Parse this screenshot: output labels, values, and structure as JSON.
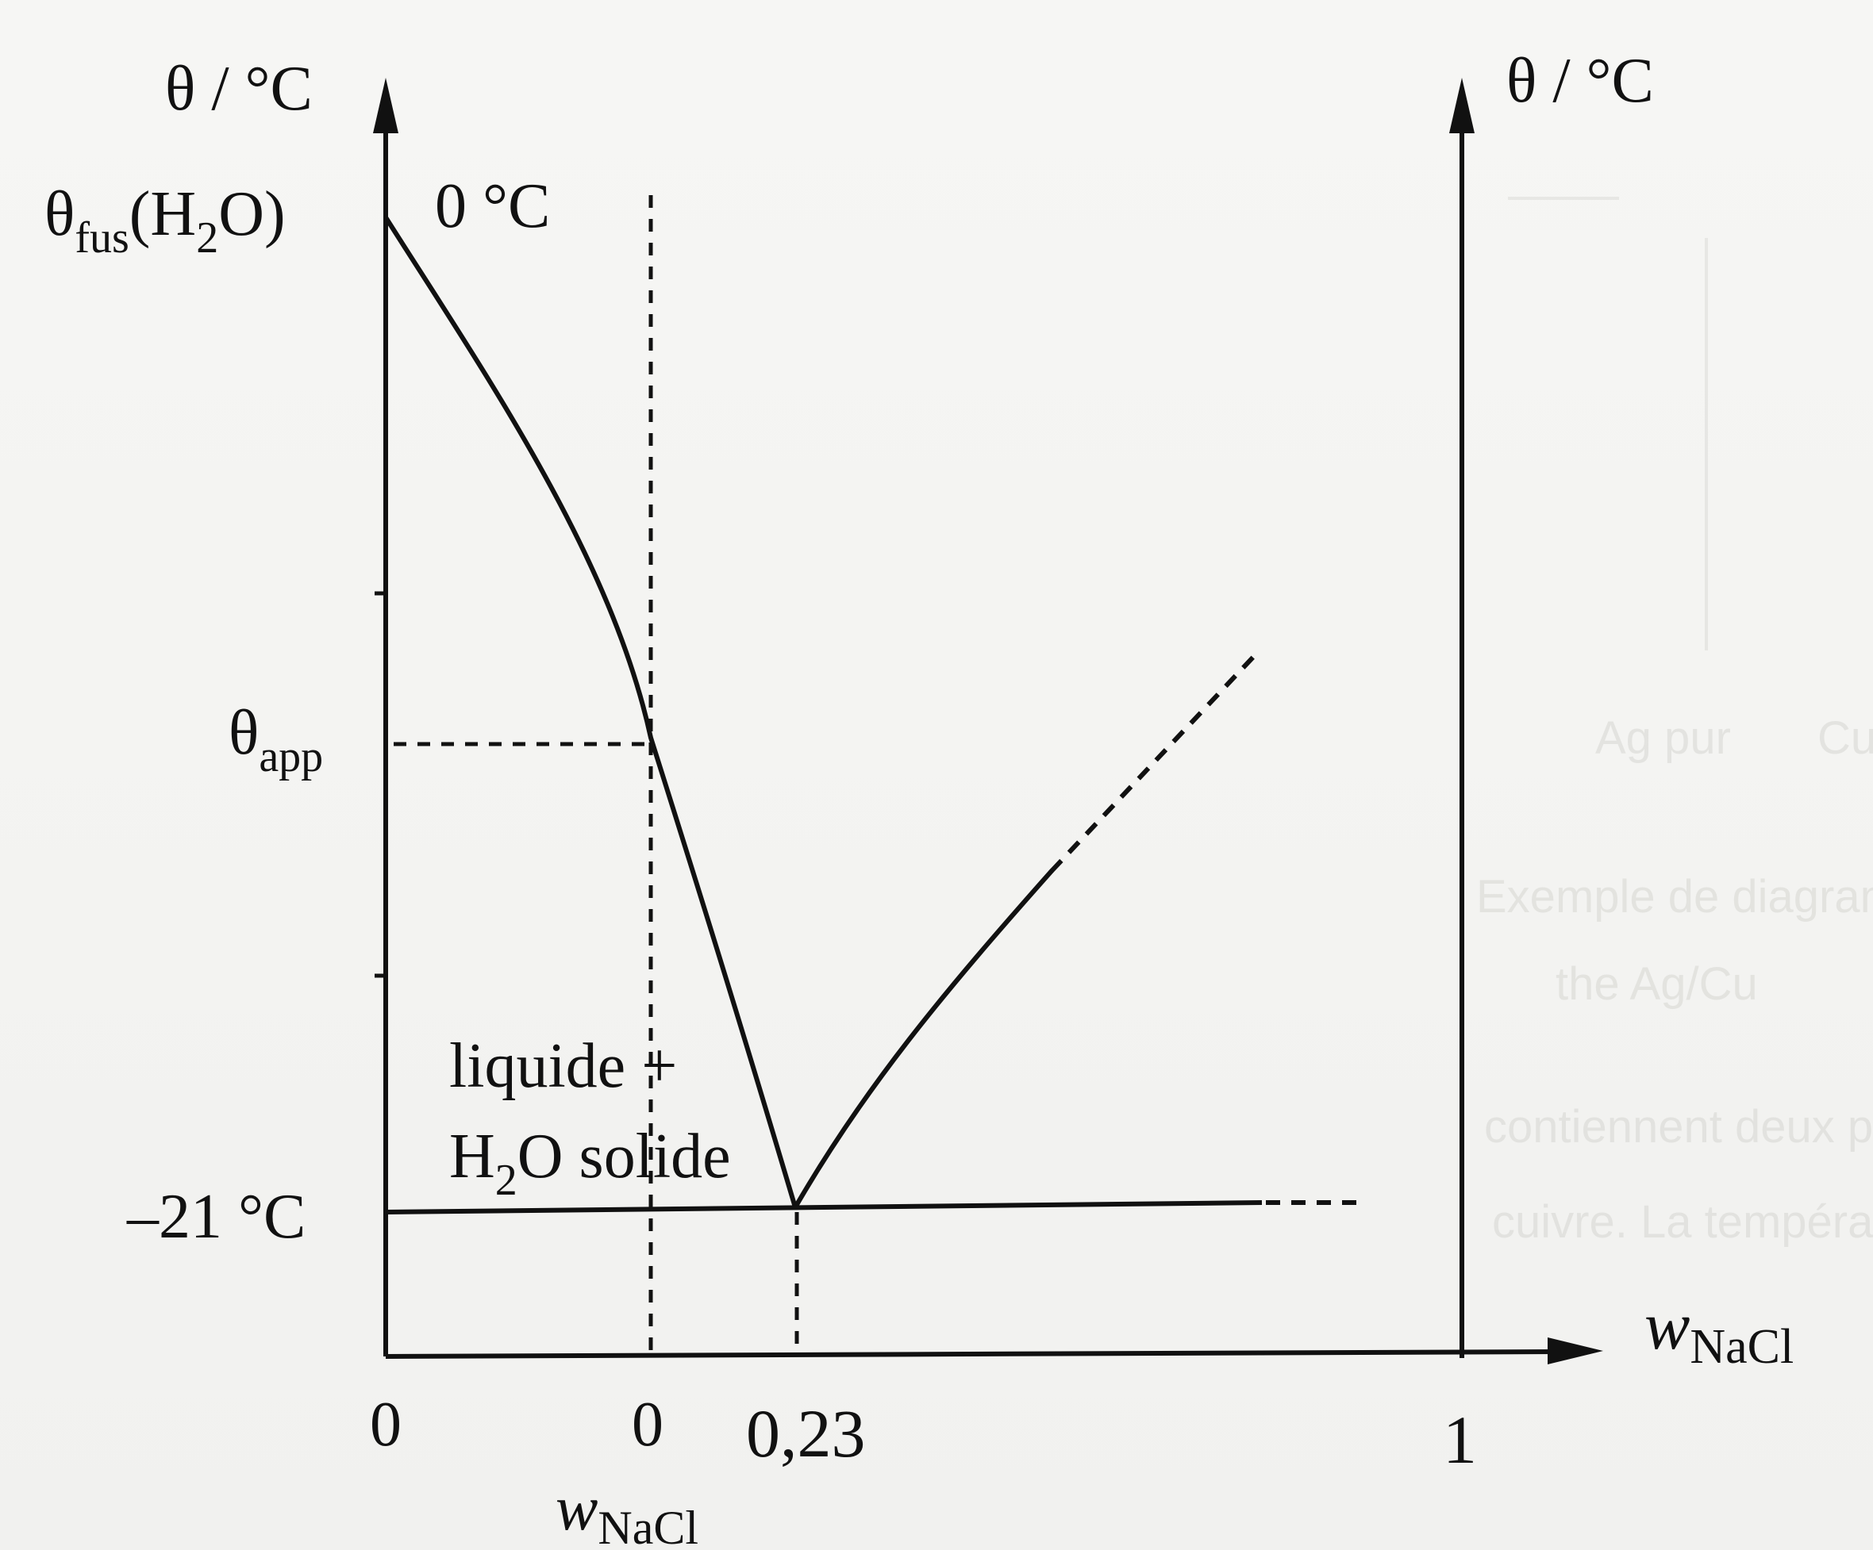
{
  "diagram": {
    "left_axis": {
      "label": "θ / °C"
    },
    "right_axis": {
      "label": "θ / °C"
    },
    "x_axis": {
      "label": "w",
      "label_sub": "NaCl"
    },
    "y_labels": {
      "theta_fus": {
        "main": "θ",
        "sub": "fus",
        "rest": "(H",
        "sub2": "2",
        "tail": "O)"
      },
      "zero_c": "0 °C",
      "theta_app": {
        "main": "θ",
        "sub": "app"
      },
      "minus21": "–21 °C"
    },
    "x_ticks": {
      "origin": "0",
      "w0": "0",
      "w0_caption": {
        "main": "w",
        "sub": "NaCl"
      },
      "eutectic": "0,23",
      "one": "1"
    },
    "region": {
      "line1": "liquide + ",
      "line2_a": "H",
      "line2_sub": "2",
      "line2_b": "O solide"
    }
  },
  "background_text": {
    "t1": "Ag pur",
    "t2": "Cu pu",
    "t3": "Exemple de diagramme binaire solide-liquide avec miscibilité",
    "t4": "the Ag/Cu",
    "t5": "contiennent deux phases solides que des alliages du système",
    "t6": "cuivre. La température de fusion de l'eutectique est intermédiaire"
  }
}
